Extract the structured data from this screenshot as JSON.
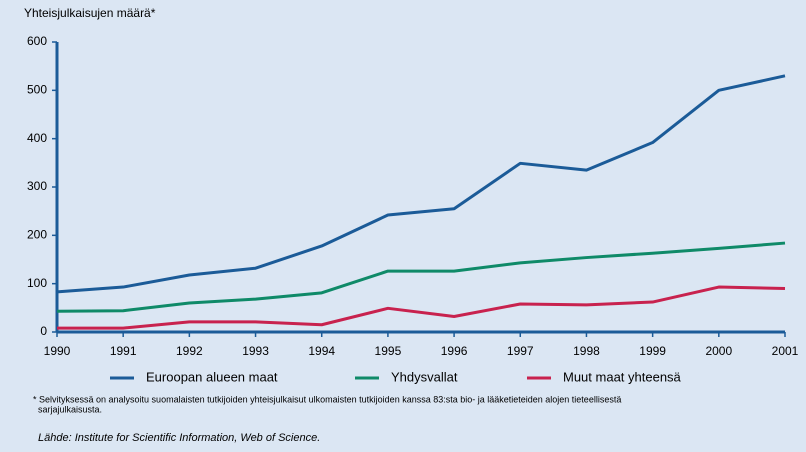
{
  "chart_data": {
    "type": "line",
    "ylabel": "Yhteisjulkaisujen määrä*",
    "x": [
      1990,
      1991,
      1992,
      1993,
      1994,
      1995,
      1996,
      1997,
      1998,
      1999,
      2000,
      2001
    ],
    "series": [
      {
        "name": "Euroopan alueen maat",
        "color": "#1b5b98",
        "values": [
          83,
          93,
          118,
          132,
          178,
          242,
          255,
          349,
          335,
          392,
          500,
          530
        ]
      },
      {
        "name": "Yhdysvallat",
        "color": "#0f8a68",
        "values": [
          43,
          44,
          60,
          68,
          81,
          126,
          126,
          143,
          154,
          163,
          173,
          184
        ]
      },
      {
        "name": "Muut maat yhteensä",
        "color": "#c8224e",
        "values": [
          8,
          8,
          21,
          21,
          15,
          49,
          32,
          58,
          56,
          62,
          93,
          90
        ]
      }
    ],
    "xlim": [
      1990,
      2001
    ],
    "xticks": [
      1990,
      1991,
      1992,
      1993,
      1994,
      1995,
      1996,
      1997,
      1998,
      1999,
      2000,
      2001
    ],
    "ylim": [
      0,
      600
    ],
    "yticks": [
      0,
      100,
      200,
      300,
      400,
      500,
      600
    ],
    "grid": false,
    "legend": "bottom",
    "footnote": [
      "* Selvityksessä on analysoitu suomalaisten tutkijoiden yhteisjulkaisut ulkomaisten tutkijoiden kanssa 83:sta bio- ja lääketieteiden alojen tieteellisestä",
      "sarjajulkaisusta."
    ],
    "source": "Lähde: Institute for Scientific Information, Web of Science."
  }
}
